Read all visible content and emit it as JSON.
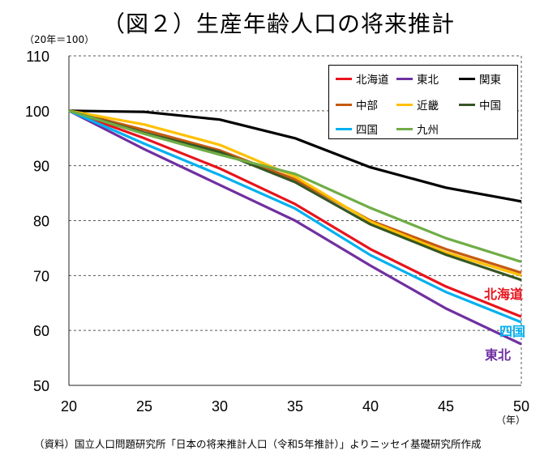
{
  "title": "（図２）生産年齢人口の将来推計",
  "unit_label": "（20年＝100）",
  "x_unit": "（年）",
  "source": "（資料）国立人口問題研究所「日本の将来推計人口（令和5年推計）」よりニッセイ基礎研究所作成",
  "chart_data": {
    "type": "line",
    "title": "（図２）生産年齢人口の将来推計",
    "x": [
      20,
      25,
      30,
      35,
      40,
      45,
      50
    ],
    "xlabel": "（年）",
    "ylabel": "（20年＝100）",
    "ylim": [
      50,
      110
    ],
    "yticks": [
      50,
      60,
      70,
      80,
      90,
      100,
      110
    ],
    "grid": "horizontal-dashed",
    "legend_position": "top-right",
    "series": [
      {
        "name": "北海道",
        "color": "#e8141c",
        "values": [
          100,
          95.0,
          89.5,
          83.0,
          74.8,
          68.0,
          62.5
        ]
      },
      {
        "name": "東北",
        "color": "#7030a0",
        "values": [
          100,
          93.0,
          86.5,
          80.0,
          71.8,
          64.0,
          57.5
        ]
      },
      {
        "name": "関東",
        "color": "#000000",
        "values": [
          100,
          99.8,
          98.4,
          95.0,
          89.7,
          86.0,
          83.5
        ]
      },
      {
        "name": "中部",
        "color": "#c55a11",
        "values": [
          100,
          96.5,
          92.8,
          87.5,
          80.0,
          74.8,
          70.5
        ]
      },
      {
        "name": "近畿",
        "color": "#ffc000",
        "values": [
          100,
          97.5,
          93.8,
          88.0,
          79.8,
          74.2,
          70.0
        ]
      },
      {
        "name": "中国",
        "color": "#375623",
        "values": [
          100,
          96.0,
          92.5,
          87.0,
          79.3,
          73.8,
          69.2
        ]
      },
      {
        "name": "四国",
        "color": "#00b0f0",
        "values": [
          100,
          94.0,
          88.3,
          82.2,
          73.7,
          67.0,
          61.5
        ]
      },
      {
        "name": "九州",
        "color": "#70ad47",
        "values": [
          100,
          95.8,
          92.0,
          88.5,
          82.3,
          76.8,
          72.5
        ]
      }
    ],
    "end_labels": [
      {
        "name": "北海道",
        "color": "#e8141c"
      },
      {
        "name": "四国",
        "color": "#00b0f0"
      },
      {
        "name": "東北",
        "color": "#7030a0"
      }
    ]
  }
}
